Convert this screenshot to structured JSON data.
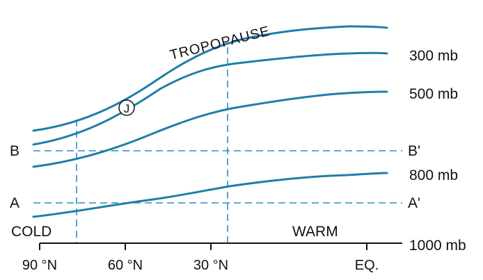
{
  "diagram": {
    "tropopause_label": "TROPOPAUSE",
    "jet_label": "J",
    "pressure_levels": [
      "300 mb",
      "500 mb",
      "800 mb",
      "1000 mb"
    ],
    "section_lines": {
      "b_left": "B",
      "b_right": "B'",
      "a_left": "A",
      "a_right": "A'"
    },
    "side_labels": {
      "cold": "COLD",
      "warm": "WARM"
    },
    "x_ticks": [
      "90 °N",
      "60 °N",
      "30 °N",
      "EQ."
    ],
    "colors": {
      "curve": "#1f7ea8",
      "dashed": "#2b8ec0",
      "text": "#111111"
    }
  }
}
